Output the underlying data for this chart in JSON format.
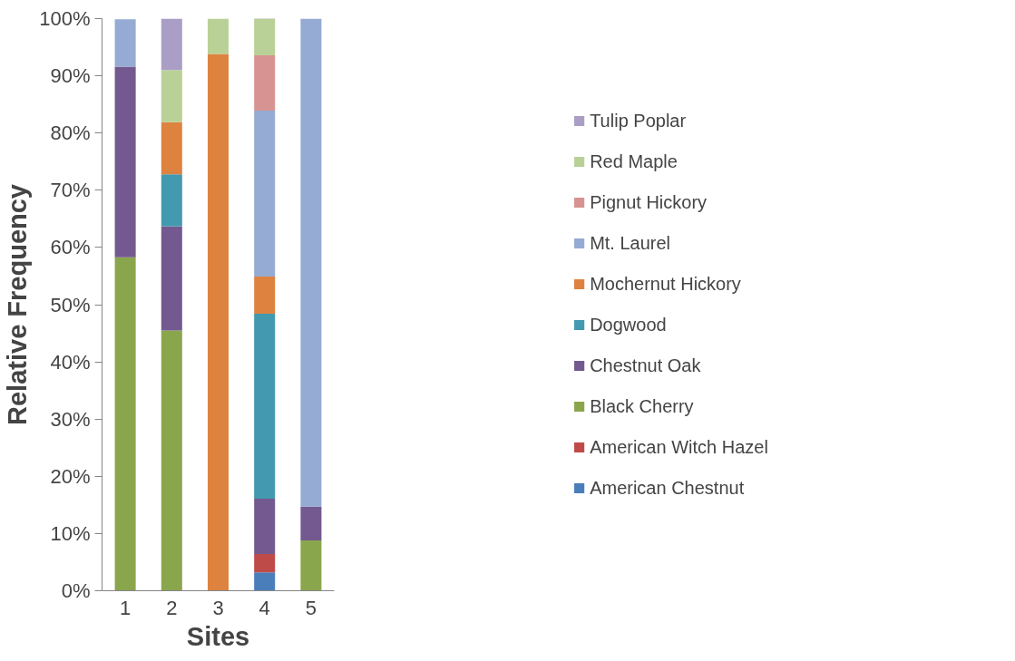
{
  "chart_data": {
    "type": "bar",
    "stacked": true,
    "xlabel": "Sites",
    "ylabel": "Relative Frequency",
    "categories": [
      "1",
      "2",
      "3",
      "4",
      "5"
    ],
    "series": [
      {
        "name": "American Chestnut",
        "color": "#4a7ebb",
        "values": [
          0,
          0,
          0,
          3.2,
          0
        ]
      },
      {
        "name": "American Witch Hazel",
        "color": "#be4b48",
        "values": [
          0,
          0,
          0,
          3.2,
          0
        ]
      },
      {
        "name": "Black Cherry",
        "color": "#8aa64c",
        "values": [
          58.3,
          45.5,
          0,
          0,
          8.8
        ]
      },
      {
        "name": "Chestnut Oak",
        "color": "#73598f",
        "values": [
          33.3,
          18.2,
          0,
          9.7,
          5.9
        ]
      },
      {
        "name": "Dogwood",
        "color": "#4299b0",
        "values": [
          0,
          9.1,
          0,
          32.3,
          0
        ]
      },
      {
        "name": "Mochernut Hickory",
        "color": "#de833f",
        "values": [
          0,
          9.1,
          93.8,
          6.5,
          0
        ]
      },
      {
        "name": "Mt. Laurel",
        "color": "#95abd3",
        "values": [
          8.3,
          0,
          0,
          29.0,
          85.3
        ]
      },
      {
        "name": "Pignut Hickory",
        "color": "#d69391",
        "values": [
          0,
          0,
          0,
          9.7,
          0
        ]
      },
      {
        "name": "Red Maple",
        "color": "#b9d196",
        "values": [
          0,
          9.1,
          6.2,
          6.5,
          0
        ]
      },
      {
        "name": "Tulip Poplar",
        "color": "#ab9ec6",
        "values": [
          0,
          9.1,
          0,
          0,
          0
        ]
      }
    ],
    "ylim": [
      0,
      100
    ],
    "yticks": [
      {
        "value": 0,
        "label": "0%"
      },
      {
        "value": 10,
        "label": "10%"
      },
      {
        "value": 20,
        "label": "20%"
      },
      {
        "value": 30,
        "label": "30%"
      },
      {
        "value": 40,
        "label": "40%"
      },
      {
        "value": 50,
        "label": "50%"
      },
      {
        "value": 60,
        "label": "60%"
      },
      {
        "value": 70,
        "label": "70%"
      },
      {
        "value": 80,
        "label": "80%"
      },
      {
        "value": 90,
        "label": "90%"
      },
      {
        "value": 100,
        "label": "100%"
      }
    ],
    "grid": false,
    "legend": "right"
  }
}
